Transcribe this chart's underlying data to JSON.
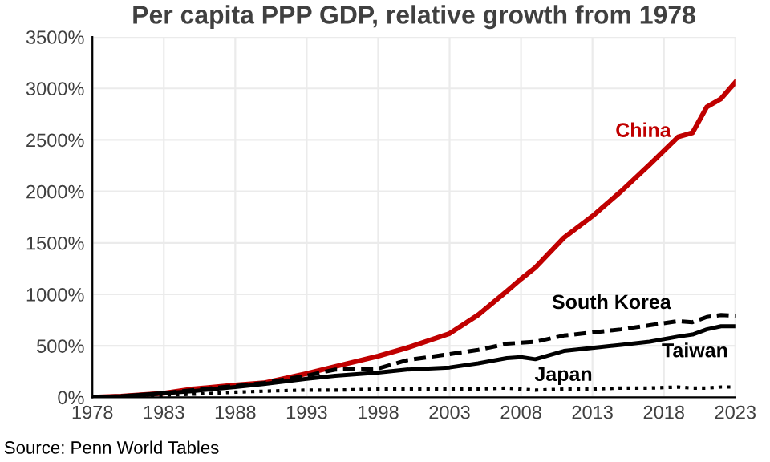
{
  "chart_data": {
    "type": "line",
    "title": "Per capita PPP GDP, relative growth from 1978",
    "x": [
      1978,
      1980,
      1983,
      1985,
      1988,
      1990,
      1993,
      1995,
      1998,
      2000,
      2003,
      2005,
      2007,
      2008,
      2009,
      2011,
      2013,
      2015,
      2017,
      2019,
      2020,
      2021,
      2022,
      2023
    ],
    "series": [
      {
        "name": "China",
        "color": "#c00000",
        "line_style": "solid",
        "values": [
          0,
          10,
          40,
          80,
          120,
          140,
          230,
          300,
          400,
          480,
          620,
          800,
          1030,
          1150,
          1260,
          1550,
          1760,
          2000,
          2260,
          2530,
          2570,
          2820,
          2900,
          3060
        ]
      },
      {
        "name": "South Korea",
        "color": "#000000",
        "line_style": "dashed",
        "values": [
          0,
          0,
          40,
          70,
          110,
          140,
          210,
          270,
          280,
          360,
          420,
          460,
          520,
          530,
          540,
          600,
          630,
          660,
          700,
          740,
          730,
          780,
          800,
          790
        ]
      },
      {
        "name": "Taiwan",
        "color": "#000000",
        "line_style": "solid",
        "values": [
          0,
          10,
          40,
          60,
          100,
          130,
          180,
          210,
          240,
          270,
          290,
          330,
          380,
          390,
          370,
          450,
          480,
          510,
          540,
          590,
          610,
          660,
          690,
          690
        ]
      },
      {
        "name": "Japan",
        "color": "#000000",
        "line_style": "dotted",
        "values": [
          0,
          0,
          20,
          30,
          50,
          60,
          70,
          70,
          80,
          80,
          80,
          80,
          90,
          80,
          70,
          80,
          80,
          90,
          90,
          100,
          90,
          90,
          100,
          100
        ]
      }
    ],
    "xlim": [
      1978,
      2023
    ],
    "xticks": [
      1978,
      1983,
      1988,
      1993,
      1998,
      2003,
      2008,
      2013,
      2018,
      2023
    ],
    "ylim": [
      0,
      3500
    ],
    "yticks": [
      {
        "value": 0,
        "label": "0%"
      },
      {
        "value": 500,
        "label": "500%"
      },
      {
        "value": 1000,
        "label": "1000%"
      },
      {
        "value": 1500,
        "label": "1500%"
      },
      {
        "value": 2000,
        "label": "2000%"
      },
      {
        "value": 2500,
        "label": "2500%"
      },
      {
        "value": 3000,
        "label": "3000%"
      },
      {
        "value": 3500,
        "label": "3500%"
      }
    ],
    "grid": true,
    "legend": false,
    "annotations": [
      "Source: Penn World Tables"
    ]
  }
}
